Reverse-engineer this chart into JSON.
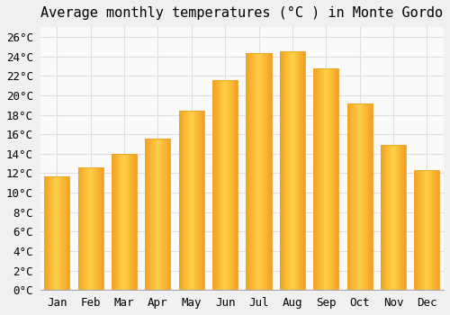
{
  "title": "Average monthly temperatures (°C ) in Monte Gordo",
  "months": [
    "Jan",
    "Feb",
    "Mar",
    "Apr",
    "May",
    "Jun",
    "Jul",
    "Aug",
    "Sep",
    "Oct",
    "Nov",
    "Dec"
  ],
  "temperatures": [
    11.7,
    12.6,
    14.0,
    15.6,
    18.4,
    21.6,
    24.3,
    24.5,
    22.8,
    19.2,
    14.9,
    12.3
  ],
  "bar_color_center": "#FFD04A",
  "bar_color_edge": "#F0A020",
  "ylim": [
    0,
    27
  ],
  "ytick_max": 26,
  "ytick_step": 2,
  "background_color": "#F0F0F0",
  "plot_bg_color": "#FAFAFA",
  "grid_color": "#DDDDDD",
  "title_fontsize": 11,
  "tick_fontsize": 9,
  "font_family": "monospace"
}
